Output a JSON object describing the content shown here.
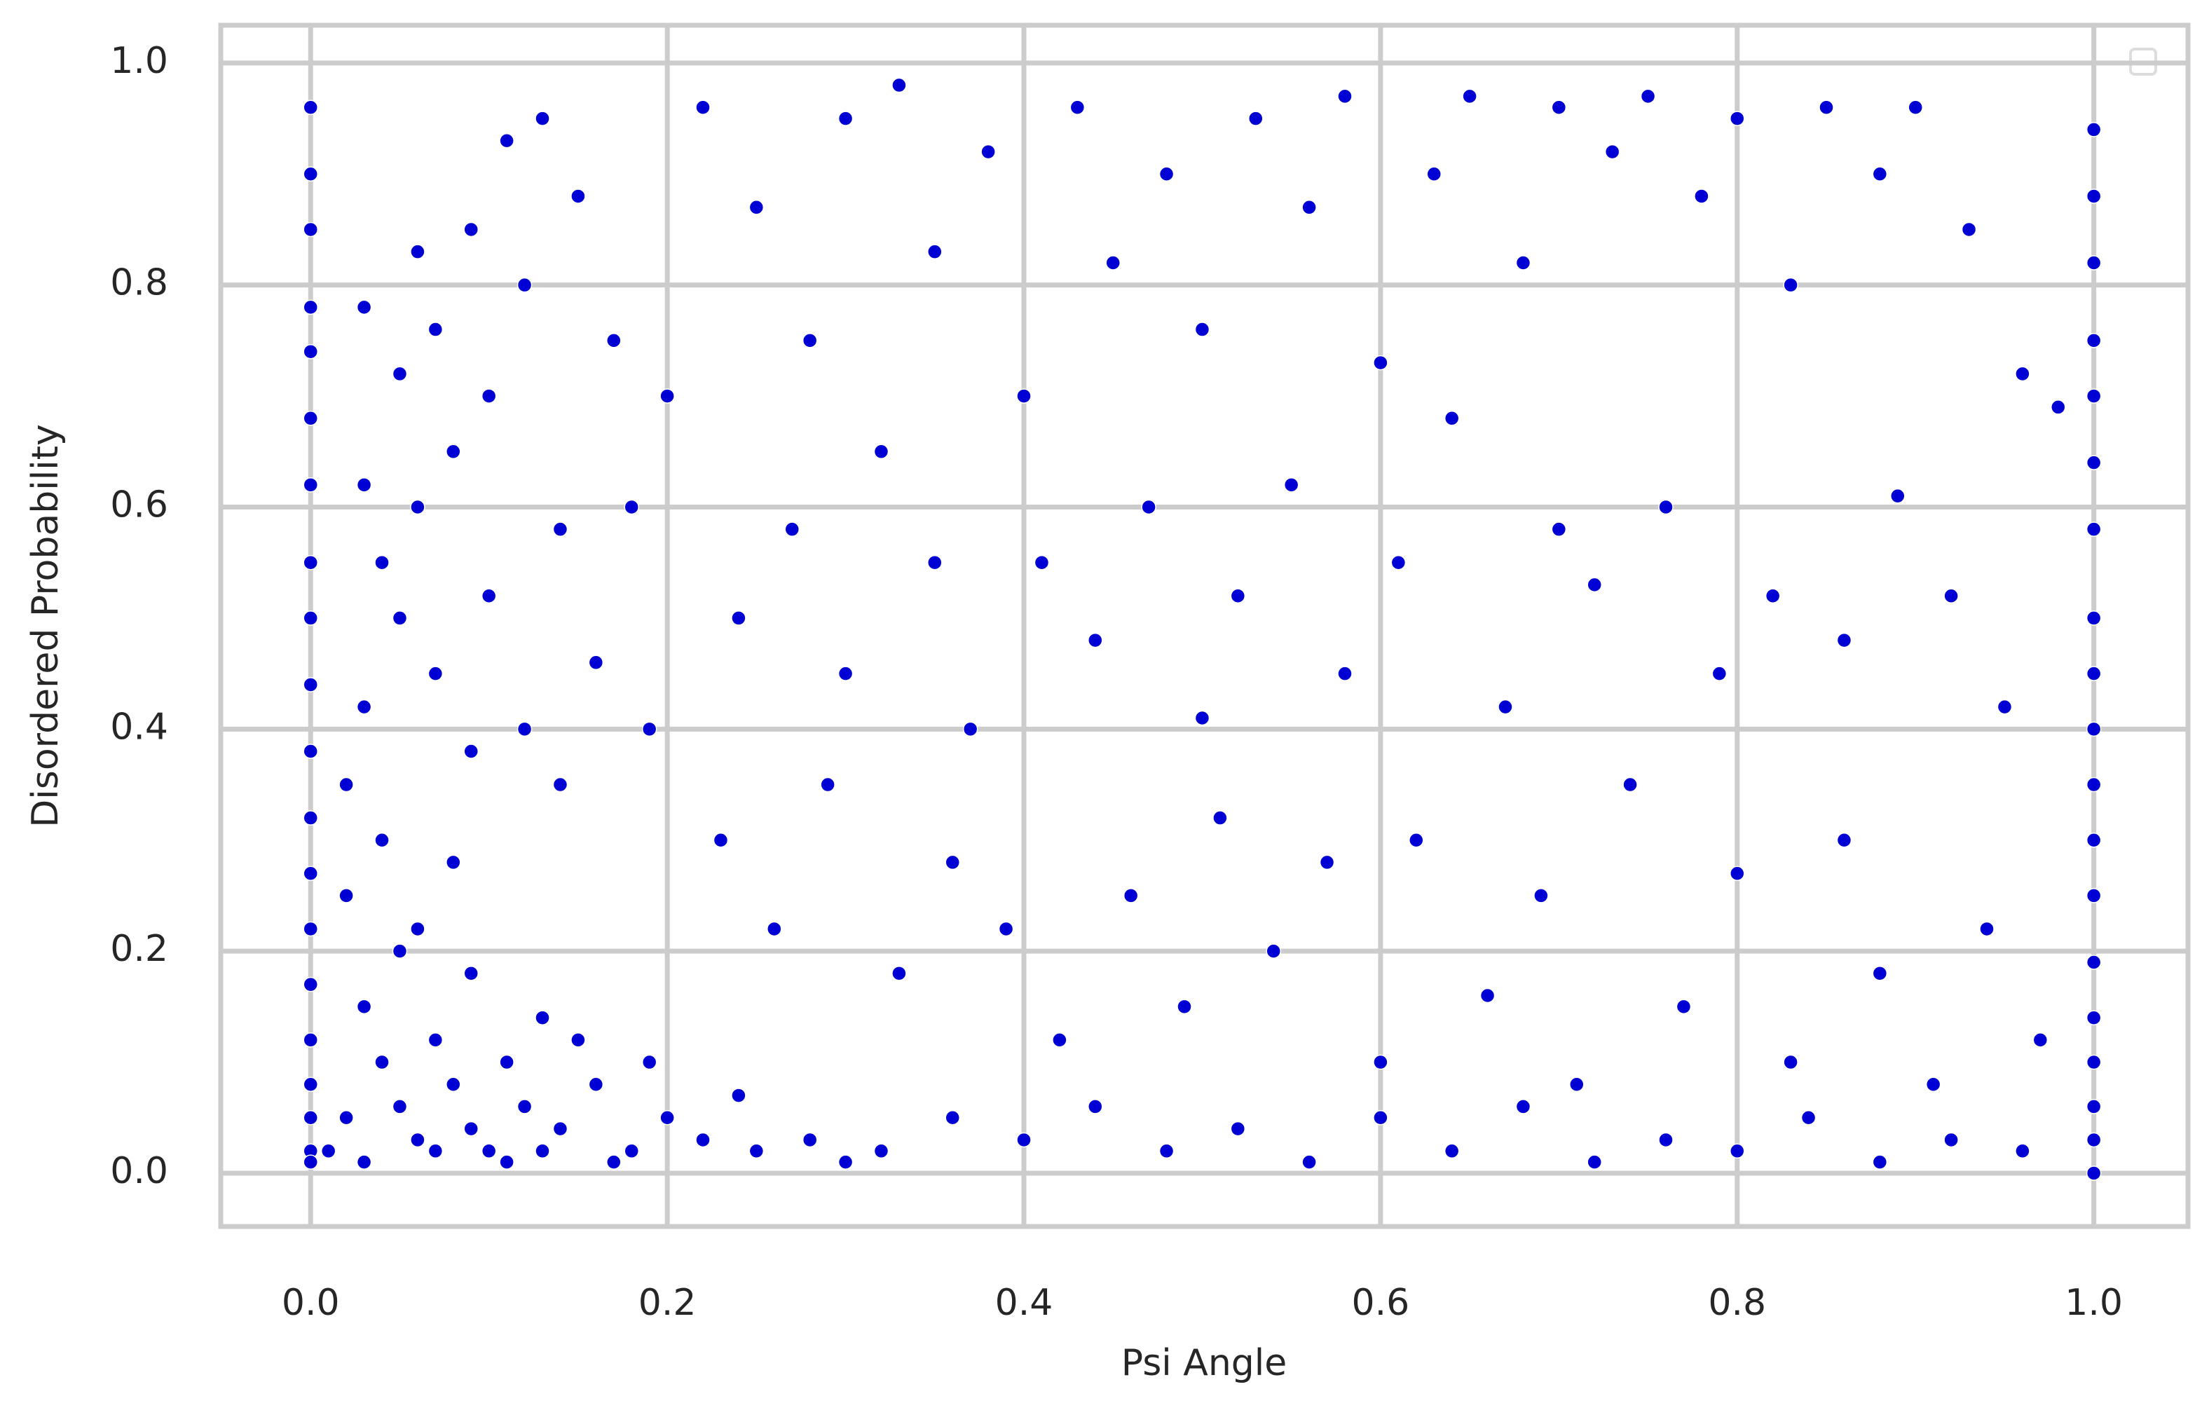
{
  "chart_data": {
    "type": "scatter",
    "x_label": "Psi Angle",
    "y_label": "Disordered Probability",
    "x": [
      0,
      0,
      0,
      0,
      0,
      0,
      0,
      0,
      0,
      0,
      0,
      0,
      0,
      0,
      0,
      0,
      0,
      0,
      0,
      0,
      1,
      1,
      1,
      1,
      1,
      1,
      1,
      1,
      1,
      1,
      1,
      1,
      1,
      1,
      1,
      1,
      1,
      1,
      1,
      0.02,
      0.04,
      0.06,
      0.08,
      0.1,
      0.12,
      0.03,
      0.05,
      0.07,
      0.09,
      0.11,
      0.14,
      0.16,
      0.18,
      0.2,
      0.22,
      0.25,
      0.02,
      0.04,
      0.06,
      0.08,
      0.13,
      0.15,
      0.01,
      0.03,
      0.05,
      0.07,
      0.09,
      0.11,
      0.13,
      0.17,
      0.19,
      0.24,
      0.28,
      0.3,
      0.02,
      0.03,
      0.05,
      0.04,
      0.06,
      0.03,
      0.07,
      0.09,
      0.1,
      0.12,
      0.14,
      0.16,
      0.08,
      0.05,
      0.07,
      0.03,
      0.1,
      0.12,
      0.11,
      0.13,
      0.15,
      0.09,
      0.06,
      0.18,
      0.17,
      0.2,
      0.19,
      0.14,
      0.22,
      0.25,
      0.28,
      0.3,
      0.33,
      0.35,
      0.38,
      0.4,
      0.43,
      0.45,
      0.48,
      0.5,
      0.53,
      0.56,
      0.58,
      0.6,
      0.63,
      0.65,
      0.68,
      0.7,
      0.73,
      0.75,
      0.78,
      0.8,
      0.83,
      0.85,
      0.88,
      0.9,
      0.93,
      0.96,
      0.98,
      0.24,
      0.27,
      0.3,
      0.32,
      0.35,
      0.37,
      0.41,
      0.44,
      0.47,
      0.5,
      0.52,
      0.55,
      0.58,
      0.61,
      0.64,
      0.67,
      0.7,
      0.72,
      0.76,
      0.79,
      0.82,
      0.86,
      0.89,
      0.92,
      0.95,
      0.23,
      0.26,
      0.29,
      0.33,
      0.36,
      0.39,
      0.42,
      0.46,
      0.49,
      0.51,
      0.54,
      0.57,
      0.6,
      0.62,
      0.66,
      0.69,
      0.71,
      0.74,
      0.77,
      0.8,
      0.83,
      0.86,
      0.88,
      0.91,
      0.94,
      0.97,
      0.32,
      0.36,
      0.4,
      0.44,
      0.48,
      0.52,
      0.56,
      0.6,
      0.64,
      0.68,
      0.72,
      0.76,
      0.8,
      0.84,
      0.88,
      0.92,
      0.96
    ],
    "values": [
      0.96,
      0.9,
      0.85,
      0.78,
      0.74,
      0.68,
      0.62,
      0.55,
      0.5,
      0.44,
      0.38,
      0.32,
      0.27,
      0.22,
      0.17,
      0.12,
      0.08,
      0.05,
      0.02,
      0.01,
      0.94,
      0.88,
      0.82,
      0.75,
      0.7,
      0.64,
      0.58,
      0.5,
      0.45,
      0.4,
      0.35,
      0.3,
      0.25,
      0.19,
      0.14,
      0.1,
      0.06,
      0.03,
      0,
      0.05,
      0.1,
      0.03,
      0.08,
      0.02,
      0.06,
      0.15,
      0.2,
      0.12,
      0.18,
      0.1,
      0.04,
      0.08,
      0.02,
      0.05,
      0.03,
      0.02,
      0.25,
      0.3,
      0.22,
      0.28,
      0.14,
      0.12,
      0.02,
      0.01,
      0.06,
      0.02,
      0.04,
      0.01,
      0.02,
      0.01,
      0.1,
      0.07,
      0.03,
      0.01,
      0.35,
      0.42,
      0.5,
      0.55,
      0.6,
      0.62,
      0.45,
      0.38,
      0.52,
      0.4,
      0.35,
      0.46,
      0.65,
      0.72,
      0.76,
      0.78,
      0.7,
      0.8,
      0.93,
      0.95,
      0.88,
      0.85,
      0.83,
      0.6,
      0.75,
      0.7,
      0.4,
      0.58,
      0.96,
      0.87,
      0.75,
      0.95,
      0.98,
      0.83,
      0.92,
      0.7,
      0.96,
      0.82,
      0.9,
      0.76,
      0.95,
      0.87,
      0.97,
      0.73,
      0.9,
      0.97,
      0.82,
      0.96,
      0.92,
      0.97,
      0.88,
      0.95,
      0.8,
      0.96,
      0.9,
      0.96,
      0.85,
      0.72,
      0.69,
      0.5,
      0.58,
      0.45,
      0.65,
      0.55,
      0.4,
      0.55,
      0.48,
      0.6,
      0.41,
      0.52,
      0.62,
      0.45,
      0.55,
      0.68,
      0.42,
      0.58,
      0.53,
      0.6,
      0.45,
      0.52,
      0.48,
      0.61,
      0.52,
      0.42,
      0.3,
      0.22,
      0.35,
      0.18,
      0.28,
      0.22,
      0.12,
      0.25,
      0.15,
      0.32,
      0.2,
      0.28,
      0.1,
      0.3,
      0.16,
      0.25,
      0.08,
      0.35,
      0.15,
      0.27,
      0.1,
      0.3,
      0.18,
      0.08,
      0.22,
      0.12,
      0.02,
      0.05,
      0.03,
      0.06,
      0.02,
      0.04,
      0.01,
      0.05,
      0.02,
      0.06,
      0.01,
      0.03,
      0.02,
      0.05,
      0.01,
      0.03,
      0.02
    ],
    "color": "#0000d4",
    "xlim": [
      -0.0504,
      1.0528
    ],
    "ylim": [
      -0.048,
      1.034
    ],
    "xticks": [
      {
        "value": 0,
        "label": "0.0"
      },
      0.2,
      0.4,
      0.6,
      0.8,
      {
        "value": 1,
        "label": "1.0"
      }
    ],
    "yticks": [
      {
        "value": 0,
        "label": "0.0"
      },
      0.2,
      0.4,
      0.6,
      0.8,
      {
        "value": 1,
        "label": "1.0"
      }
    ],
    "grid": true
  }
}
